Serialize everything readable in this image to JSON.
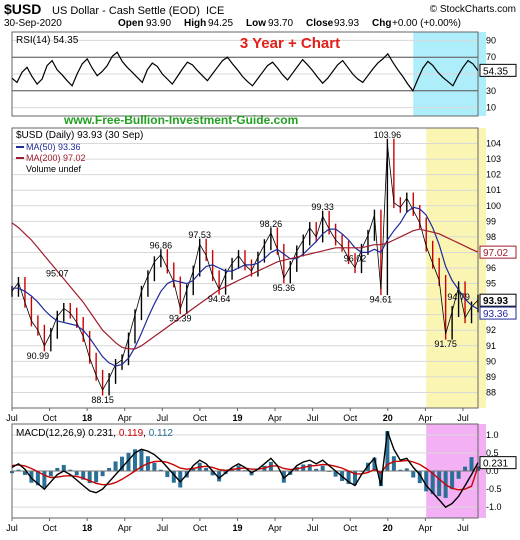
{
  "header": {
    "symbol": "$USD",
    "name": "US Dollar - Cash Settle (EOD)",
    "exchange": "ICE",
    "source": "© StockCharts.com",
    "date": "30-Sep-2020",
    "open_label": "Open",
    "open": "93.90",
    "high_label": "High",
    "high": "94.25",
    "low_label": "Low",
    "low": "93.70",
    "close_label": "Close",
    "close": "93.93",
    "change_label": "Chg",
    "change": "+0.00 (+0.00%)"
  },
  "overlay": {
    "chart_label": "3 Year + Chart",
    "website": "www.Free-Bullion-Investment-Guide.com"
  },
  "colors": {
    "price": "#000000",
    "down_bar": "#cc0000",
    "ma50": "#1f2a9a",
    "ma200": "#a01c2c",
    "highlight_cyan": "#aeeefa",
    "highlight_yellow": "#fbf5b4",
    "highlight_pink": "#f4b0f4",
    "macd_hist": "#2a6f96",
    "macd_signal": "#cc0000",
    "title_red": "#e0201a",
    "web_green": "#21a021"
  },
  "chart_data": [
    {
      "type": "line",
      "panel": "RSI",
      "legend": "RSI(14) 54.35",
      "last_value": "54.35",
      "ylim": [
        0,
        100
      ],
      "y_ticks": [
        "10",
        "30",
        "50",
        "70",
        "90"
      ],
      "reference_lines": [
        30,
        70
      ],
      "series": [
        {
          "name": "RSI(14)",
          "values": [
            45,
            40,
            52,
            58,
            47,
            38,
            44,
            60,
            66,
            55,
            49,
            42,
            36,
            50,
            62,
            68,
            57,
            48,
            53,
            60,
            71,
            76,
            65,
            58,
            52,
            46,
            40,
            55,
            63,
            59,
            50,
            44,
            38,
            47,
            56,
            64,
            61,
            54,
            48,
            42,
            50,
            58,
            66,
            70,
            62,
            55,
            47,
            41,
            36,
            44,
            52,
            60,
            64,
            57,
            49,
            43,
            51,
            59,
            67,
            61,
            54,
            46,
            39,
            45,
            53,
            61,
            66,
            58,
            50,
            44,
            40,
            48,
            56,
            63,
            68,
            74,
            64,
            55,
            47,
            38,
            30,
            44,
            57,
            65,
            60,
            52,
            46,
            41,
            36,
            48,
            58,
            66,
            62,
            54
          ]
        }
      ]
    },
    {
      "type": "line",
      "panel": "Price",
      "legend": "$USD (Daily) 93.93 (30 Sep)",
      "legend_ma50": "MA(50) 93.36",
      "legend_ma200": "MA(200) 97.02",
      "legend_volume": "Volume undef",
      "ylim": [
        87,
        105
      ],
      "y_ticks": [
        "88",
        "89",
        "90",
        "91",
        "92",
        "93",
        "94",
        "95",
        "96",
        "97",
        "98",
        "99",
        "100",
        "101",
        "102",
        "103",
        "104"
      ],
      "x_tick_labels": [
        "Jul",
        "Oct",
        "18",
        "Apr",
        "Jul",
        "Oct",
        "19",
        "Apr",
        "Jul",
        "Oct",
        "20",
        "Apr",
        "Jul"
      ],
      "tag_labels": {
        "ma200": "97.02",
        "close": "93.93",
        "ma50": "93.36"
      },
      "annotations": [
        {
          "label": "95.07",
          "x": 7,
          "y": 95.07
        },
        {
          "label": "90.99",
          "x": 4,
          "y": 90.99
        },
        {
          "label": "88.15",
          "x": 14,
          "y": 88.15
        },
        {
          "label": "96.86",
          "x": 23,
          "y": 96.86
        },
        {
          "label": "93.39",
          "x": 26,
          "y": 93.39
        },
        {
          "label": "97.53",
          "x": 29,
          "y": 97.53
        },
        {
          "label": "94.64",
          "x": 32,
          "y": 94.64
        },
        {
          "label": "98.26",
          "x": 40,
          "y": 98.26
        },
        {
          "label": "95.36",
          "x": 42,
          "y": 95.36
        },
        {
          "label": "99.33",
          "x": 48,
          "y": 99.33
        },
        {
          "label": "96.02",
          "x": 53,
          "y": 96.02
        },
        {
          "label": "103.96",
          "x": 58,
          "y": 103.96
        },
        {
          "label": "94.61",
          "x": 57,
          "y": 94.61
        },
        {
          "label": "94.79",
          "x": 69,
          "y": 94.79
        },
        {
          "label": "91.75",
          "x": 67,
          "y": 91.75
        }
      ],
      "series": [
        {
          "name": "$USD",
          "values": [
            94.5,
            95.07,
            93.8,
            92.6,
            92.0,
            90.99,
            91.8,
            92.9,
            93.4,
            93.1,
            92.5,
            91.6,
            90.2,
            89.1,
            88.15,
            88.9,
            89.8,
            90.1,
            91.5,
            93.0,
            94.5,
            95.5,
            96.4,
            96.86,
            96.0,
            95.1,
            93.39,
            94.6,
            95.8,
            97.53,
            96.8,
            95.5,
            94.64,
            95.6,
            96.3,
            96.8,
            96.2,
            95.8,
            96.7,
            97.5,
            98.26,
            97.2,
            95.36,
            96.1,
            97.1,
            97.8,
            98.6,
            98.0,
            99.33,
            98.5,
            97.8,
            97.4,
            96.6,
            96.02,
            97.2,
            98.1,
            99.4,
            94.61,
            103.96,
            100.2,
            99.9,
            100.5,
            99.7,
            98.9,
            97.4,
            96.3,
            95.2,
            91.75,
            93.2,
            94.79,
            92.8,
            93.5,
            93.93
          ]
        },
        {
          "name": "MA(50)",
          "values": [
            94.7,
            94.7,
            94.5,
            94.2,
            93.8,
            93.3,
            92.9,
            92.6,
            92.5,
            92.4,
            92.3,
            92.0,
            91.5,
            90.9,
            90.3,
            89.9,
            89.7,
            89.8,
            90.2,
            90.9,
            91.8,
            92.8,
            93.7,
            94.5,
            95.0,
            95.2,
            95.1,
            95.0,
            95.2,
            95.7,
            96.1,
            96.2,
            96.0,
            95.8,
            95.8,
            96.0,
            96.2,
            96.2,
            96.3,
            96.6,
            97.0,
            97.2,
            96.9,
            96.6,
            96.6,
            96.9,
            97.3,
            97.7,
            98.2,
            98.5,
            98.5,
            98.2,
            97.8,
            97.3,
            97.0,
            97.0,
            97.2,
            97.0,
            97.8,
            98.4,
            98.9,
            99.6,
            99.9,
            99.8,
            99.4,
            98.6,
            97.5,
            96.1,
            95.2,
            94.6,
            94.0,
            93.6,
            93.36
          ]
        },
        {
          "name": "MA(200)",
          "values": [
            98.9,
            98.6,
            98.2,
            97.8,
            97.3,
            96.8,
            96.3,
            95.8,
            95.3,
            94.8,
            94.3,
            93.8,
            93.2,
            92.6,
            92.0,
            91.6,
            91.2,
            90.9,
            90.8,
            90.8,
            91.0,
            91.3,
            91.6,
            91.9,
            92.2,
            92.5,
            92.8,
            93.1,
            93.4,
            93.7,
            94.0,
            94.3,
            94.6,
            94.8,
            95.0,
            95.2,
            95.4,
            95.6,
            95.8,
            96.0,
            96.2,
            96.4,
            96.5,
            96.6,
            96.7,
            96.8,
            96.9,
            97.0,
            97.1,
            97.2,
            97.3,
            97.3,
            97.3,
            97.3,
            97.3,
            97.4,
            97.5,
            97.5,
            97.6,
            97.8,
            98.0,
            98.2,
            98.4,
            98.5,
            98.4,
            98.3,
            98.2,
            98.0,
            97.8,
            97.6,
            97.4,
            97.2,
            97.02
          ]
        }
      ]
    },
    {
      "type": "line",
      "panel": "MACD",
      "legend_prefix": "MACD(12,26,9)",
      "macd_value": "0.231",
      "signal_value": "0.119",
      "hist_value": "0.112",
      "last_value": "0.231",
      "ylim": [
        -1.3,
        1.3
      ],
      "y_ticks": [
        "1.0",
        "0.5",
        "0.0",
        "-0.5",
        "-1.0"
      ],
      "x_tick_labels": [
        "Jul",
        "Oct",
        "18",
        "Apr",
        "Jul",
        "Oct",
        "19",
        "Apr",
        "Jul",
        "Oct",
        "20",
        "Apr",
        "Jul"
      ],
      "series": [
        {
          "name": "MACD",
          "values": [
            0.1,
            0.2,
            0.05,
            -0.2,
            -0.35,
            -0.5,
            -0.3,
            -0.1,
            0.0,
            -0.1,
            -0.25,
            -0.4,
            -0.55,
            -0.6,
            -0.5,
            -0.3,
            -0.1,
            0.1,
            0.3,
            0.5,
            0.6,
            0.55,
            0.45,
            0.3,
            0.1,
            -0.1,
            -0.3,
            -0.1,
            0.15,
            0.3,
            0.2,
            0.0,
            -0.2,
            -0.05,
            0.1,
            0.2,
            0.1,
            -0.05,
            0.05,
            0.2,
            0.35,
            0.15,
            -0.2,
            -0.05,
            0.15,
            0.25,
            0.3,
            0.2,
            0.3,
            0.15,
            0.0,
            -0.15,
            -0.3,
            -0.4,
            -0.1,
            0.15,
            0.35,
            -0.4,
            1.1,
            0.6,
            0.3,
            0.35,
            0.1,
            -0.1,
            -0.4,
            -0.6,
            -0.8,
            -1.0,
            -0.9,
            -0.7,
            -0.4,
            -0.1,
            0.231
          ]
        },
        {
          "name": "Signal",
          "values": [
            0.15,
            0.17,
            0.14,
            0.07,
            -0.02,
            -0.12,
            -0.18,
            -0.17,
            -0.14,
            -0.13,
            -0.15,
            -0.2,
            -0.27,
            -0.34,
            -0.38,
            -0.37,
            -0.32,
            -0.23,
            -0.12,
            0.0,
            0.12,
            0.21,
            0.26,
            0.27,
            0.24,
            0.17,
            0.08,
            0.05,
            0.07,
            0.11,
            0.13,
            0.1,
            0.04,
            0.02,
            0.04,
            0.07,
            0.08,
            0.05,
            0.05,
            0.08,
            0.14,
            0.14,
            0.07,
            0.04,
            0.06,
            0.1,
            0.14,
            0.15,
            0.18,
            0.17,
            0.13,
            0.08,
            0.0,
            -0.08,
            -0.08,
            -0.04,
            0.04,
            -0.05,
            0.18,
            0.26,
            0.27,
            0.29,
            0.25,
            0.18,
            0.07,
            -0.07,
            -0.22,
            -0.38,
            -0.48,
            -0.52,
            -0.5,
            -0.42,
            0.119
          ]
        }
      ]
    }
  ]
}
